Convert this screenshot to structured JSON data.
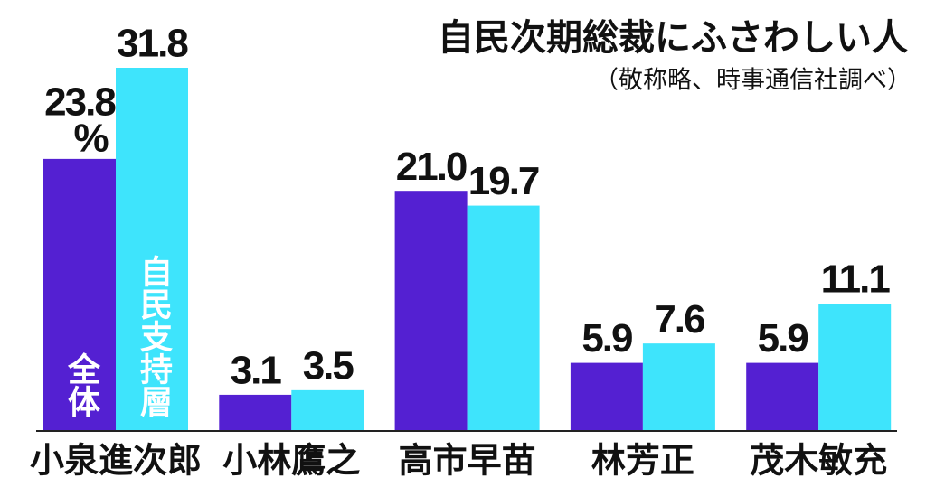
{
  "chart_data": {
    "type": "bar",
    "title": "自民次期総裁にふさわしい人",
    "subtitle": "（敬称略、時事通信社調べ）",
    "unit": "%",
    "categories": [
      "小泉進次郎",
      "小林鷹之",
      "高市早苗",
      "林芳正",
      "茂木敏充"
    ],
    "series": [
      {
        "name": "全体",
        "color": "#5420d2",
        "values": [
          23.8,
          3.1,
          21.0,
          5.9,
          5.9
        ],
        "value_labels": [
          "23.8",
          "3.1",
          "21.0",
          "5.9",
          "5.9"
        ]
      },
      {
        "name": "自民支持層",
        "color": "#3ee4fc",
        "values": [
          31.8,
          3.5,
          19.7,
          7.6,
          11.1
        ],
        "value_labels": [
          "31.8",
          "3.5",
          "19.7",
          "7.6",
          "11.1"
        ]
      }
    ]
  }
}
